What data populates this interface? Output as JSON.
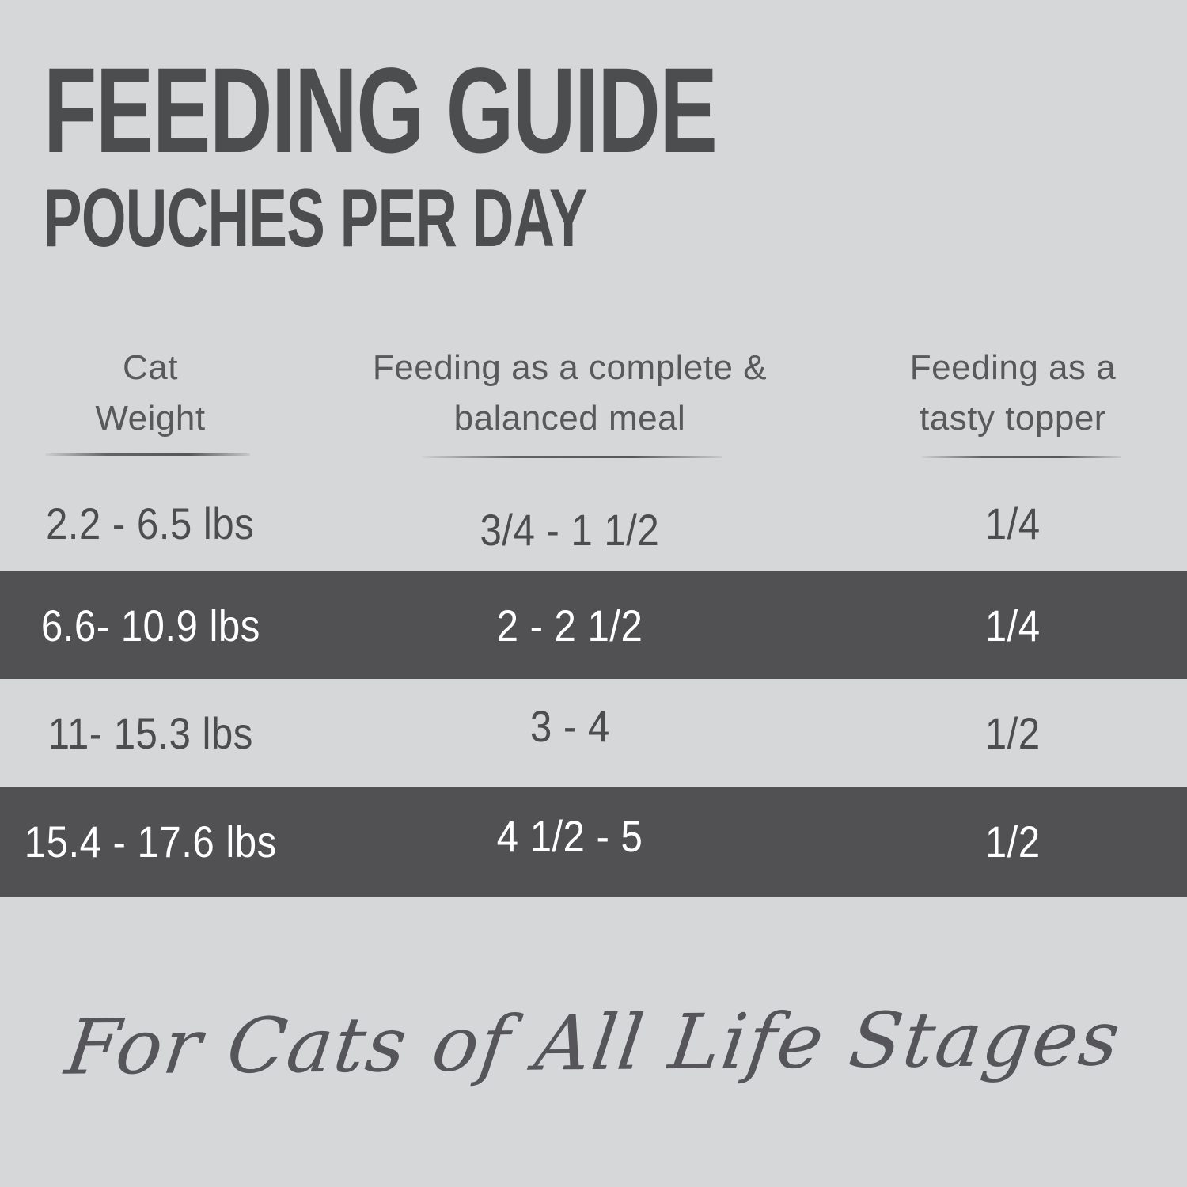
{
  "title": {
    "line1": "FEEDING GUIDE",
    "line2": "POUCHES PER DAY"
  },
  "table": {
    "columns": [
      {
        "line1": "Cat",
        "line2": "Weight"
      },
      {
        "line1": "Feeding as a complete &",
        "line2": "balanced meal"
      },
      {
        "line1": "Feeding as a",
        "line2": "tasty topper"
      }
    ],
    "rows": [
      {
        "weight": "2.2 - 6.5 lbs",
        "meal": "3/4 - 1 1/2",
        "topper": "1/4",
        "highlighted": false
      },
      {
        "weight": "6.6- 10.9 lbs",
        "meal": "2 - 2 1/2",
        "topper": "1/4",
        "highlighted": true
      },
      {
        "weight": "11- 15.3 lbs",
        "meal": "3 - 4",
        "topper": "1/2",
        "highlighted": false
      },
      {
        "weight": "15.4 - 17.6 lbs",
        "meal": "4 1/2 - 5",
        "topper": "1/2",
        "highlighted": true
      }
    ]
  },
  "footer": {
    "tagline": "For Cats of All Life Stages"
  },
  "colors": {
    "background": "#d6d7d8",
    "highlight_band": "#515153",
    "text_dark": "#4c4d4f",
    "text_header": "#58595b",
    "text_on_band": "#ffffff"
  },
  "chart_data": {
    "type": "table",
    "title": "FEEDING GUIDE",
    "subtitle": "POUCHES PER DAY",
    "columns": [
      "Cat Weight",
      "Feeding as a complete & balanced meal",
      "Feeding as a tasty topper"
    ],
    "rows": [
      [
        "2.2 - 6.5 lbs",
        "3/4 - 1 1/2",
        "1/4"
      ],
      [
        "6.6- 10.9 lbs",
        "2 - 2 1/2",
        "1/4"
      ],
      [
        "11- 15.3 lbs",
        "3 - 4",
        "1/2"
      ],
      [
        "15.4 - 17.6 lbs",
        "4 1/2 - 5",
        "1/2"
      ]
    ],
    "highlighted_row_indices": [
      1,
      3
    ],
    "footnote": "For Cats of All Life Stages"
  }
}
